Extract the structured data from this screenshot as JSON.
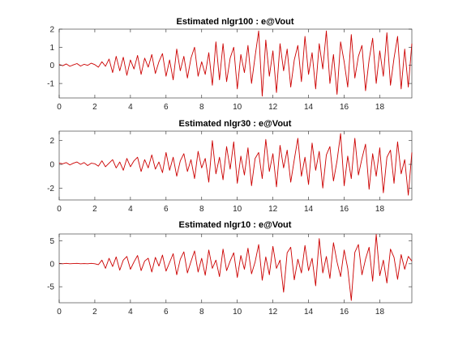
{
  "figure": {
    "background": "#ffffff",
    "trace_color": "#cc0000"
  },
  "chart_data": [
    {
      "type": "line",
      "title": "Estimated nlgr100 : e@Vout",
      "xlabel": "",
      "ylabel": "",
      "xlim": [
        0,
        19.8
      ],
      "ylim": [
        -1.8,
        2
      ],
      "xticks": [
        0,
        2,
        4,
        6,
        8,
        10,
        12,
        14,
        16,
        18
      ],
      "yticks": [
        -1,
        0,
        1,
        2
      ],
      "grid": false,
      "series": [
        {
          "name": "",
          "x": [
            0,
            0.2,
            0.4,
            0.6,
            0.8,
            1,
            1.2,
            1.4,
            1.6,
            1.8,
            2,
            2.2,
            2.4,
            2.6,
            2.8,
            3,
            3.2,
            3.4,
            3.6,
            3.8,
            4,
            4.2,
            4.4,
            4.6,
            4.8,
            5,
            5.2,
            5.4,
            5.6,
            5.8,
            6,
            6.2,
            6.4,
            6.6,
            6.8,
            7,
            7.2,
            7.4,
            7.6,
            7.8,
            8,
            8.2,
            8.4,
            8.6,
            8.8,
            9,
            9.2,
            9.4,
            9.6,
            9.8,
            10,
            10.2,
            10.4,
            10.6,
            10.8,
            11,
            11.2,
            11.4,
            11.6,
            11.8,
            12,
            12.2,
            12.4,
            12.6,
            12.8,
            13,
            13.2,
            13.4,
            13.6,
            13.8,
            14,
            14.2,
            14.4,
            14.6,
            14.8,
            15,
            15.2,
            15.4,
            15.6,
            15.8,
            16,
            16.2,
            16.4,
            16.6,
            16.8,
            17,
            17.2,
            17.4,
            17.6,
            17.8,
            18,
            18.2,
            18.4,
            18.6,
            18.8,
            19,
            19.2,
            19.4,
            19.6,
            19.8
          ],
          "y": [
            0.05,
            -0.02,
            0.08,
            -0.05,
            0.03,
            0.1,
            -0.04,
            0.06,
            0.0,
            0.12,
            0.04,
            -0.1,
            0.2,
            -0.05,
            0.35,
            -0.4,
            0.5,
            -0.3,
            0.45,
            -0.55,
            0.3,
            -0.2,
            0.55,
            -0.5,
            0.4,
            -0.1,
            0.6,
            -0.45,
            0.2,
            0.65,
            -0.6,
            0.3,
            -0.8,
            0.9,
            -0.3,
            0.5,
            -0.7,
            0.4,
            1.0,
            -0.6,
            0.2,
            -0.5,
            0.7,
            -1.1,
            1.3,
            -0.8,
            1.2,
            -0.9,
            0.4,
            1.0,
            -1.3,
            0.6,
            -0.4,
            1.1,
            -1.0,
            0.5,
            1.9,
            -1.7,
            1.4,
            -0.6,
            0.8,
            -1.5,
            1.2,
            -0.3,
            0.9,
            -1.2,
            0.3,
            1.1,
            -0.9,
            1.6,
            -0.5,
            0.7,
            -1.3,
            1.2,
            -0.2,
            1.9,
            -1.0,
            0.6,
            -1.6,
            1.3,
            0.2,
            -1.2,
            1.7,
            -0.7,
            0.5,
            1.1,
            -1.4,
            0.3,
            1.5,
            -1.0,
            0.8,
            -0.6,
            1.8,
            -1.1,
            0.4,
            1.6,
            -1.3,
            0.9,
            -1.2,
            1.2
          ]
        }
      ]
    },
    {
      "type": "line",
      "title": "Estimated nlgr30 : e@Vout",
      "xlabel": "",
      "ylabel": "",
      "xlim": [
        0,
        19.8
      ],
      "ylim": [
        -3,
        2.8
      ],
      "xticks": [
        0,
        2,
        4,
        6,
        8,
        10,
        12,
        14,
        16,
        18
      ],
      "yticks": [
        -2,
        0,
        2
      ],
      "grid": false,
      "series": [
        {
          "name": "",
          "x": [
            0,
            0.2,
            0.4,
            0.6,
            0.8,
            1,
            1.2,
            1.4,
            1.6,
            1.8,
            2,
            2.2,
            2.4,
            2.6,
            2.8,
            3,
            3.2,
            3.4,
            3.6,
            3.8,
            4,
            4.2,
            4.4,
            4.6,
            4.8,
            5,
            5.2,
            5.4,
            5.6,
            5.8,
            6,
            6.2,
            6.4,
            6.6,
            6.8,
            7,
            7.2,
            7.4,
            7.6,
            7.8,
            8,
            8.2,
            8.4,
            8.6,
            8.8,
            9,
            9.2,
            9.4,
            9.6,
            9.8,
            10,
            10.2,
            10.4,
            10.6,
            10.8,
            11,
            11.2,
            11.4,
            11.6,
            11.8,
            12,
            12.2,
            12.4,
            12.6,
            12.8,
            13,
            13.2,
            13.4,
            13.6,
            13.8,
            14,
            14.2,
            14.4,
            14.6,
            14.8,
            15,
            15.2,
            15.4,
            15.6,
            15.8,
            16,
            16.2,
            16.4,
            16.6,
            16.8,
            17,
            17.2,
            17.4,
            17.6,
            17.8,
            18,
            18.2,
            18.4,
            18.6,
            18.8,
            19,
            19.2,
            19.4,
            19.6,
            19.8
          ],
          "y": [
            0.1,
            0.05,
            0.15,
            -0.05,
            0.1,
            0.2,
            0.0,
            0.15,
            -0.1,
            0.1,
            0.05,
            -0.15,
            0.3,
            -0.2,
            0.1,
            0.4,
            -0.3,
            0.2,
            -0.5,
            0.5,
            -0.2,
            0.3,
            0.6,
            -0.6,
            0.4,
            -0.3,
            0.8,
            -0.4,
            0.2,
            -0.7,
            1.0,
            -0.5,
            0.6,
            -1.0,
            0.3,
            0.9,
            -0.6,
            0.4,
            -1.2,
            1.1,
            -0.3,
            0.5,
            -1.5,
            2.0,
            -0.8,
            0.6,
            -1.3,
            1.5,
            -0.4,
            1.9,
            -1.6,
            0.7,
            -0.9,
            1.4,
            -1.8,
            0.5,
            1.0,
            -1.2,
            2.1,
            -0.6,
            0.9,
            -1.9,
            1.6,
            -0.3,
            1.2,
            -1.5,
            0.4,
            2.2,
            -1.0,
            0.6,
            -1.7,
            1.8,
            -0.5,
            1.1,
            -2.0,
            0.8,
            1.5,
            -1.4,
            0.3,
            2.6,
            -1.8,
            0.7,
            -1.2,
            2.2,
            -0.9,
            0.5,
            1.7,
            -2.1,
            0.9,
            -1.0,
            1.4,
            -2.4,
            0.6,
            1.2,
            -1.6,
            1.9,
            -0.8,
            0.4,
            -2.6,
            1.0
          ]
        }
      ]
    },
    {
      "type": "line",
      "title": "Estimated nlgr10 : e@Vout",
      "xlabel": "",
      "ylabel": "",
      "xlim": [
        0,
        19.8
      ],
      "ylim": [
        -8.5,
        6.5
      ],
      "xticks": [
        0,
        2,
        4,
        6,
        8,
        10,
        12,
        14,
        16,
        18
      ],
      "yticks": [
        -5,
        0,
        5
      ],
      "grid": false,
      "series": [
        {
          "name": "",
          "x": [
            0,
            0.2,
            0.4,
            0.6,
            0.8,
            1,
            1.2,
            1.4,
            1.6,
            1.8,
            2,
            2.2,
            2.4,
            2.6,
            2.8,
            3,
            3.2,
            3.4,
            3.6,
            3.8,
            4,
            4.2,
            4.4,
            4.6,
            4.8,
            5,
            5.2,
            5.4,
            5.6,
            5.8,
            6,
            6.2,
            6.4,
            6.6,
            6.8,
            7,
            7.2,
            7.4,
            7.6,
            7.8,
            8,
            8.2,
            8.4,
            8.6,
            8.8,
            9,
            9.2,
            9.4,
            9.6,
            9.8,
            10,
            10.2,
            10.4,
            10.6,
            10.8,
            11,
            11.2,
            11.4,
            11.6,
            11.8,
            12,
            12.2,
            12.4,
            12.6,
            12.8,
            13,
            13.2,
            13.4,
            13.6,
            13.8,
            14,
            14.2,
            14.4,
            14.6,
            14.8,
            15,
            15.2,
            15.4,
            15.6,
            15.8,
            16,
            16.2,
            16.4,
            16.6,
            16.8,
            17,
            17.2,
            17.4,
            17.6,
            17.8,
            18,
            18.2,
            18.4,
            18.6,
            18.8,
            19,
            19.2,
            19.4,
            19.6,
            19.8
          ],
          "y": [
            0.1,
            0.0,
            0.1,
            0.0,
            0.05,
            0.1,
            0.0,
            0.05,
            0.0,
            0.1,
            0.0,
            -0.2,
            0.8,
            -1.0,
            1.2,
            -0.6,
            1.5,
            -1.4,
            0.8,
            1.6,
            -1.2,
            0.4,
            1.8,
            -1.5,
            0.6,
            1.2,
            -1.8,
            1.4,
            -0.5,
            1.9,
            -1.6,
            0.3,
            2.2,
            -2.4,
            1.0,
            2.6,
            -2.0,
            0.5,
            2.8,
            -1.8,
            1.2,
            -2.5,
            3.0,
            -1.0,
            0.8,
            -2.8,
            3.2,
            -1.5,
            0.6,
            2.4,
            -3.0,
            1.8,
            -1.2,
            3.4,
            -2.2,
            0.4,
            4.2,
            -3.6,
            1.5,
            -2.4,
            3.8,
            -1.0,
            0.8,
            -6.2,
            2.4,
            3.6,
            -3.5,
            1.0,
            -2.0,
            4.0,
            -1.5,
            1.2,
            -4.8,
            5.5,
            -2.0,
            1.6,
            -3.2,
            4.6,
            0.4,
            -2.8,
            3.0,
            -1.0,
            -8.0,
            2.5,
            4.2,
            -2.4,
            1.0,
            3.6,
            -3.8,
            6.4,
            -2.6,
            0.8,
            -4.2,
            3.2,
            1.4,
            -3.4,
            2.0,
            -1.2,
            1.6,
            0.6
          ]
        }
      ]
    }
  ]
}
